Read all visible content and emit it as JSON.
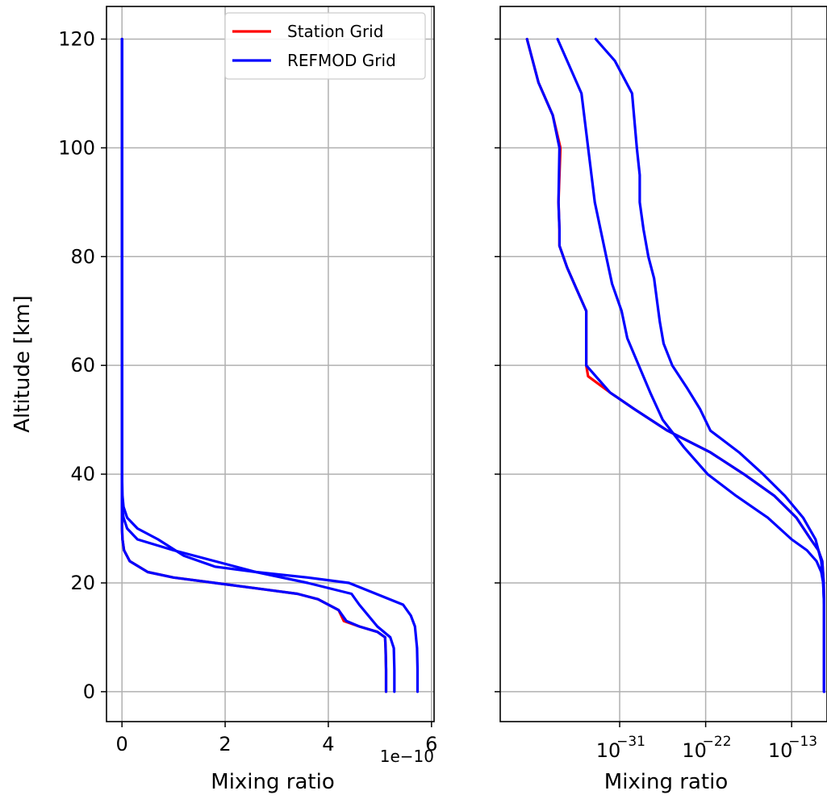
{
  "chart_data": [
    {
      "type": "line",
      "xlabel": "Mixing ratio",
      "ylabel": "Altitude [km]",
      "x_offset_label": "1e−10",
      "x_scale": "linear",
      "x_unit_multiplier": 1e-10,
      "xlim": [
        -0.3,
        6.05
      ],
      "ylim": [
        -5.5,
        126
      ],
      "x_ticks": [
        0,
        2,
        4,
        6
      ],
      "x_tick_labels": [
        "0",
        "2",
        "4",
        "6"
      ],
      "y_ticks": [
        0,
        20,
        40,
        60,
        80,
        100,
        120
      ],
      "y_tick_labels": [
        "0",
        "20",
        "40",
        "60",
        "80",
        "100",
        "120"
      ],
      "grid": true,
      "legend": {
        "placement": "top-right",
        "entries": [
          "Station Grid",
          "REFMOD Grid"
        ]
      },
      "series": [
        {
          "name": "Station Grid",
          "color": "#ff0000",
          "x": [
            5.12,
            5.12,
            5.11,
            5.1,
            4.95,
            4.6,
            4.3,
            4.2,
            3.8,
            3.4,
            2.6,
            1.8,
            1.0,
            0.5,
            0.15,
            0.04,
            0.01,
            0.0,
            0.0,
            0.0,
            0.0,
            0.0,
            0.0,
            0.0,
            0.0
          ],
          "y": [
            0,
            4,
            8,
            10,
            11,
            12,
            13,
            15,
            17,
            18,
            19,
            20,
            21,
            22,
            24,
            26,
            28,
            30,
            32,
            34,
            40,
            60,
            80,
            100,
            120
          ]
        },
        {
          "name": "REFMOD Grid",
          "color": "#0000ff",
          "x": [
            5.12,
            5.12,
            5.11,
            5.1,
            4.95,
            4.6,
            4.35,
            4.2,
            3.8,
            3.4,
            2.6,
            1.8,
            1.0,
            0.5,
            0.15,
            0.04,
            0.01,
            0.0,
            0.0,
            0.0,
            0.0,
            0.0,
            0.0,
            0.0,
            0.0
          ],
          "y": [
            0,
            4,
            8,
            10,
            11,
            12,
            13,
            15,
            17,
            18,
            19,
            20,
            21,
            22,
            24,
            26,
            28,
            30,
            32,
            34,
            40,
            60,
            80,
            100,
            120
          ]
        },
        {
          "name": "",
          "color": "#0000ff",
          "x": [
            5.28,
            5.28,
            5.27,
            5.2,
            4.95,
            4.6,
            4.45,
            3.6,
            2.6,
            1.8,
            1.0,
            0.3,
            0.1,
            0.03,
            0.0,
            0.0,
            0.0,
            0.0,
            0.0
          ],
          "y": [
            0,
            4,
            8,
            10,
            12,
            16,
            18,
            20,
            22,
            24,
            26,
            28,
            30,
            32,
            34,
            40,
            60,
            80,
            120
          ]
        },
        {
          "name": "",
          "color": "#0000ff",
          "x": [
            5.73,
            5.73,
            5.72,
            5.68,
            5.6,
            5.45,
            4.4,
            3.6,
            2.6,
            1.8,
            1.2,
            0.7,
            0.3,
            0.1,
            0.03,
            0.01,
            0.0,
            0.0,
            0.0,
            0.0,
            0.0
          ],
          "y": [
            0,
            4,
            8,
            12,
            14,
            16,
            20,
            21,
            22,
            23,
            25,
            28,
            30,
            32,
            34,
            36,
            40,
            60,
            80,
            100,
            120
          ]
        }
      ]
    },
    {
      "type": "line",
      "xlabel": "Mixing ratio",
      "ylabel": "",
      "x_scale": "log",
      "xlim_log10": [
        -43.5,
        -9.3
      ],
      "ylim": [
        -5.5,
        126
      ],
      "x_ticks_log10": [
        -31,
        -22,
        -13
      ],
      "x_tick_labels": [
        {
          "base": "10",
          "exp": "−31"
        },
        {
          "base": "10",
          "exp": "−22"
        },
        {
          "base": "10",
          "exp": "−13"
        }
      ],
      "y_ticks": [
        0,
        20,
        40,
        60,
        80,
        100,
        120
      ],
      "y_tick_labels_shown": false,
      "grid": true,
      "series": [
        {
          "name": "Station Grid",
          "color": "#ff0000",
          "log10_x": [
            -9.6,
            -9.6,
            -9.6,
            -9.65,
            -9.8,
            -10.2,
            -11.0,
            -12.5,
            -14.8,
            -18.0,
            -21.5,
            -26.0,
            -29.5,
            -32.0,
            -34.3,
            -34.5,
            -34.5,
            -35.5,
            -36.5,
            -37.3,
            -37.3,
            -37.4,
            -37.2,
            -38.0,
            -39.5,
            -40.7
          ],
          "y": [
            0,
            10,
            16,
            20,
            24,
            26,
            28,
            32,
            36,
            40,
            44,
            48,
            52,
            55,
            58,
            60,
            70,
            74,
            78,
            82,
            85,
            90,
            100,
            106,
            112,
            120
          ]
        },
        {
          "name": "REFMOD Grid",
          "color": "#0000ff",
          "log10_x": [
            -9.6,
            -9.6,
            -9.6,
            -9.65,
            -9.8,
            -10.2,
            -11.0,
            -12.5,
            -14.8,
            -18.0,
            -21.5,
            -26.0,
            -29.5,
            -32.0,
            -34.5,
            -34.5,
            -34.5,
            -35.5,
            -36.5,
            -37.3,
            -37.3,
            -37.4,
            -37.3,
            -38.0,
            -39.5,
            -40.7
          ],
          "y": [
            0,
            10,
            16,
            20,
            24,
            26,
            28,
            32,
            36,
            40,
            44,
            48,
            52,
            55,
            60,
            65,
            70,
            74,
            78,
            82,
            85,
            90,
            100,
            106,
            112,
            120
          ]
        },
        {
          "name": "",
          "color": "#0000ff",
          "log10_x": [
            -9.6,
            -9.6,
            -9.7,
            -9.9,
            -10.4,
            -11.4,
            -13.0,
            -15.5,
            -18.8,
            -21.8,
            -24.3,
            -26.5,
            -27.8,
            -29.0,
            -30.2,
            -30.8,
            -31.8,
            -32.4,
            -33.6,
            -35.0,
            -37.5
          ],
          "y": [
            0,
            16,
            20,
            22,
            24,
            26,
            28,
            32,
            36,
            40,
            45,
            50,
            55,
            60,
            65,
            70,
            75,
            80,
            90,
            110,
            120
          ]
        },
        {
          "name": "",
          "color": "#0000ff",
          "log10_x": [
            -9.6,
            -9.6,
            -9.7,
            -9.9,
            -10.5,
            -11.8,
            -13.7,
            -16.0,
            -18.5,
            -21.5,
            -22.6,
            -24.0,
            -25.5,
            -26.4,
            -26.8,
            -27.1,
            -27.4,
            -28.0,
            -28.5,
            -28.9,
            -28.9,
            -29.2,
            -29.7,
            -31.5,
            -33.5
          ],
          "y": [
            0,
            16,
            20,
            24,
            28,
            32,
            36,
            40,
            44,
            48,
            52,
            56,
            60,
            64,
            68,
            72,
            76,
            80,
            85,
            90,
            95,
            100,
            110,
            116,
            120
          ]
        }
      ]
    }
  ]
}
